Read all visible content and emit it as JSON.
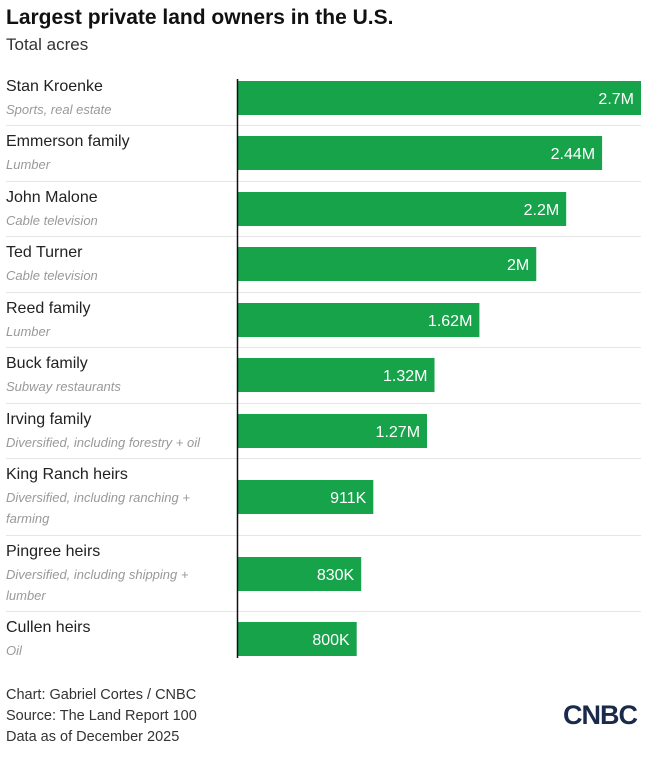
{
  "header": {
    "title": "Largest private land owners in the U.S.",
    "subtitle": "Total acres"
  },
  "chart_data": {
    "type": "bar",
    "orientation": "horizontal",
    "title": "Largest private land owners in the U.S.",
    "ylabel": "Total acres",
    "xlim": [
      0,
      2700000
    ],
    "color": "#16a34a",
    "categories": [
      "Stan Kroenke",
      "Emmerson family",
      "John Malone",
      "Ted Turner",
      "Reed family",
      "Buck family",
      "Irving family",
      "King Ranch heirs",
      "Pingree heirs",
      "Cullen heirs"
    ],
    "descriptions": [
      "Sports, real estate",
      "Lumber",
      "Cable television",
      "Cable television",
      "Lumber",
      "Subway restaurants",
      "Diversified, including forestry + oil",
      "Diversified, including ranching + farming",
      "Diversified, including shipping + lumber",
      "Oil"
    ],
    "values": [
      2700000,
      2440000,
      2200000,
      2000000,
      1620000,
      1320000,
      1270000,
      911000,
      830000,
      800000
    ],
    "labels": [
      "2.7M",
      "2.44M",
      "2.2M",
      "2M",
      "1.62M",
      "1.32M",
      "1.27M",
      "911K",
      "830K",
      "800K"
    ]
  },
  "footer": {
    "credit": "Chart: Gabriel Cortes / CNBC",
    "source": "Source: The Land Report 100",
    "date": "Data as of December 2025",
    "logo": "CNBC"
  }
}
